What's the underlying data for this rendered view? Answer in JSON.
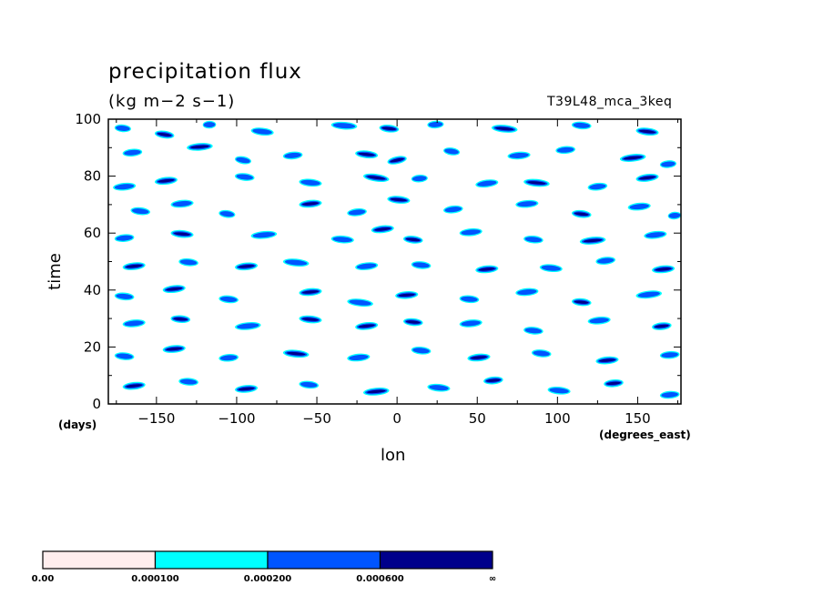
{
  "chart_data": {
    "type": "heatmap",
    "title": "precipitation flux",
    "units": "(kg m−2 s−1)",
    "run_label": "T39L48_mca_3keq",
    "xlabel": "lon",
    "ylabel": "time",
    "x_unit": "(degrees_east)",
    "y_unit": "(days)",
    "xlim": [
      -180,
      177
    ],
    "ylim": [
      0,
      100
    ],
    "x_ticks": [
      -150,
      -100,
      -50,
      0,
      50,
      100,
      150
    ],
    "x_tick_labels": [
      "−150",
      "−100",
      "−50",
      "0",
      "50",
      "100",
      "150"
    ],
    "y_ticks": [
      0,
      20,
      40,
      60,
      80,
      100
    ],
    "y_tick_labels": [
      "0",
      "20",
      "40",
      "60",
      "80",
      "100"
    ],
    "grid": false,
    "levels": [
      {
        "label": "0.00",
        "value": 0.0,
        "color": "#ffeeee"
      },
      {
        "label": "0.000100",
        "value": 0.0001,
        "color": "#00ffff"
      },
      {
        "label": "0.000200",
        "value": 0.0002,
        "color": "#0055ff"
      },
      {
        "label": "0.000600",
        "value": 0.0006,
        "color": "#00008b"
      }
    ],
    "colorbar_end_label": "∞",
    "streaks": [
      [
        -175,
        97,
        8,
        -0.05,
        2
      ],
      [
        -150,
        95,
        10,
        -0.08,
        3
      ],
      [
        -120,
        98,
        6,
        0.02,
        2
      ],
      [
        -90,
        96,
        12,
        -0.06,
        2
      ],
      [
        -40,
        98,
        14,
        -0.04,
        2
      ],
      [
        -10,
        97,
        10,
        -0.06,
        3
      ],
      [
        20,
        98,
        8,
        0.03,
        2
      ],
      [
        60,
        97,
        14,
        -0.05,
        3
      ],
      [
        110,
        98,
        10,
        -0.04,
        2
      ],
      [
        150,
        96,
        12,
        -0.06,
        3
      ],
      [
        -170,
        88,
        10,
        0.05,
        2
      ],
      [
        -130,
        90,
        14,
        0.04,
        3
      ],
      [
        -100,
        86,
        8,
        -0.1,
        2
      ],
      [
        -70,
        87,
        10,
        0.05,
        2
      ],
      [
        -25,
        88,
        12,
        -0.06,
        3
      ],
      [
        -5,
        85,
        10,
        0.12,
        3
      ],
      [
        30,
        89,
        8,
        -0.08,
        2
      ],
      [
        70,
        87,
        12,
        0.04,
        2
      ],
      [
        100,
        89,
        10,
        0.04,
        2
      ],
      [
        140,
        86,
        14,
        0.06,
        3
      ],
      [
        165,
        84,
        8,
        0.05,
        2
      ],
      [
        -176,
        76,
        12,
        0.05,
        2
      ],
      [
        -150,
        78,
        12,
        0.06,
        3
      ],
      [
        -100,
        80,
        10,
        -0.06,
        2
      ],
      [
        -60,
        78,
        12,
        -0.05,
        2
      ],
      [
        -20,
        80,
        14,
        -0.08,
        3
      ],
      [
        10,
        79,
        8,
        0.04,
        2
      ],
      [
        50,
        77,
        12,
        0.07,
        2
      ],
      [
        80,
        78,
        14,
        -0.05,
        3
      ],
      [
        120,
        76,
        10,
        0.06,
        2
      ],
      [
        150,
        79,
        12,
        0.07,
        3
      ],
      [
        -165,
        68,
        10,
        -0.06,
        2
      ],
      [
        -140,
        70,
        12,
        0.05,
        2
      ],
      [
        -110,
        67,
        8,
        -0.07,
        2
      ],
      [
        -60,
        70,
        12,
        0.05,
        3
      ],
      [
        -30,
        67,
        10,
        0.06,
        2
      ],
      [
        -5,
        72,
        12,
        -0.05,
        3
      ],
      [
        30,
        68,
        10,
        0.06,
        2
      ],
      [
        75,
        70,
        12,
        0.04,
        2
      ],
      [
        110,
        67,
        10,
        -0.06,
        3
      ],
      [
        145,
        69,
        12,
        0.05,
        2
      ],
      [
        170,
        66,
        6,
        0.05,
        2
      ],
      [
        -175,
        58,
        10,
        0.05,
        2
      ],
      [
        -140,
        60,
        12,
        -0.05,
        3
      ],
      [
        -90,
        59,
        14,
        0.05,
        2
      ],
      [
        -40,
        58,
        12,
        -0.04,
        2
      ],
      [
        -15,
        61,
        12,
        0.06,
        3
      ],
      [
        5,
        58,
        10,
        -0.06,
        3
      ],
      [
        40,
        60,
        12,
        0.05,
        2
      ],
      [
        80,
        58,
        10,
        -0.05,
        2
      ],
      [
        115,
        57,
        14,
        0.05,
        3
      ],
      [
        155,
        59,
        12,
        0.06,
        2
      ],
      [
        -170,
        48,
        12,
        0.06,
        3
      ],
      [
        -135,
        50,
        10,
        -0.05,
        2
      ],
      [
        -100,
        48,
        12,
        0.05,
        3
      ],
      [
        -70,
        50,
        14,
        -0.05,
        2
      ],
      [
        -25,
        48,
        12,
        0.06,
        2
      ],
      [
        10,
        49,
        10,
        -0.05,
        2
      ],
      [
        50,
        47,
        12,
        0.05,
        3
      ],
      [
        90,
        48,
        12,
        -0.05,
        2
      ],
      [
        125,
        50,
        10,
        0.06,
        2
      ],
      [
        160,
        47,
        12,
        0.05,
        3
      ],
      [
        -175,
        38,
        10,
        -0.05,
        2
      ],
      [
        -145,
        40,
        12,
        0.06,
        3
      ],
      [
        -110,
        37,
        10,
        -0.05,
        2
      ],
      [
        -60,
        39,
        12,
        0.05,
        3
      ],
      [
        -30,
        36,
        14,
        -0.06,
        2
      ],
      [
        0,
        38,
        12,
        0.04,
        3
      ],
      [
        40,
        37,
        10,
        -0.04,
        2
      ],
      [
        75,
        39,
        12,
        0.05,
        2
      ],
      [
        110,
        36,
        10,
        -0.05,
        3
      ],
      [
        150,
        38,
        14,
        0.06,
        2
      ],
      [
        -170,
        28,
        12,
        0.05,
        2
      ],
      [
        -140,
        30,
        10,
        -0.04,
        3
      ],
      [
        -100,
        27,
        14,
        0.05,
        2
      ],
      [
        -60,
        30,
        12,
        -0.05,
        3
      ],
      [
        -25,
        27,
        12,
        0.06,
        3
      ],
      [
        5,
        29,
        10,
        -0.05,
        3
      ],
      [
        40,
        28,
        12,
        0.05,
        2
      ],
      [
        80,
        26,
        10,
        -0.05,
        2
      ],
      [
        120,
        29,
        12,
        0.05,
        2
      ],
      [
        160,
        27,
        10,
        0.06,
        3
      ],
      [
        -175,
        17,
        10,
        -0.05,
        2
      ],
      [
        -145,
        19,
        12,
        0.05,
        3
      ],
      [
        -110,
        16,
        10,
        0.04,
        2
      ],
      [
        -70,
        18,
        14,
        -0.05,
        3
      ],
      [
        -30,
        16,
        12,
        0.05,
        2
      ],
      [
        10,
        19,
        10,
        -0.05,
        2
      ],
      [
        45,
        16,
        12,
        0.05,
        3
      ],
      [
        85,
        18,
        10,
        -0.05,
        2
      ],
      [
        125,
        15,
        12,
        0.05,
        3
      ],
      [
        165,
        17,
        10,
        0.04,
        2
      ],
      [
        -170,
        6,
        12,
        0.06,
        3
      ],
      [
        -135,
        8,
        10,
        -0.04,
        2
      ],
      [
        -100,
        5,
        12,
        0.05,
        3
      ],
      [
        -60,
        7,
        10,
        -0.05,
        2
      ],
      [
        -20,
        4,
        14,
        0.05,
        3
      ],
      [
        20,
        6,
        12,
        -0.05,
        2
      ],
      [
        55,
        8,
        10,
        0.05,
        3
      ],
      [
        95,
        5,
        12,
        -0.05,
        2
      ],
      [
        130,
        7,
        10,
        0.05,
        3
      ],
      [
        165,
        3,
        10,
        0.04,
        2
      ]
    ]
  }
}
